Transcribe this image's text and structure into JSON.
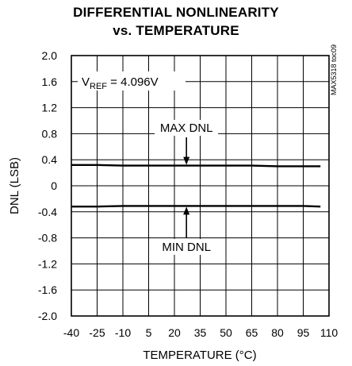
{
  "chart_data": {
    "type": "line",
    "title": "DIFFERENTIAL NONLINEARITY",
    "subtitle": "vs. TEMPERATURE",
    "xlabel": "TEMPERATURE (°C)",
    "ylabel": "DNL (LSB)",
    "xlim": [
      -40,
      110
    ],
    "ylim": [
      -2.0,
      2.0
    ],
    "x_ticks": [
      "-40",
      "-25",
      "-10",
      "5",
      "20",
      "35",
      "50",
      "65",
      "80",
      "95",
      "110"
    ],
    "x_tick_values": [
      -40,
      -25,
      -10,
      5,
      20,
      35,
      50,
      65,
      80,
      95,
      110
    ],
    "y_ticks": [
      "2.0",
      "1.6",
      "1.2",
      "0.8",
      "0.4",
      "0",
      "-0.4",
      "-0.8",
      "-1.2",
      "-1.6",
      "-2.0"
    ],
    "y_tick_values": [
      2.0,
      1.6,
      1.2,
      0.8,
      0.4,
      0,
      -0.4,
      -0.8,
      -1.2,
      -1.6,
      -2.0
    ],
    "grid": true,
    "condition_main": "V",
    "condition_sub": "REF",
    "condition_value": " = 4.096V",
    "side_code": "MAX5318 toc09",
    "series": [
      {
        "name": "MAX DNL",
        "x": [
          -40,
          -25,
          -10,
          5,
          20,
          35,
          50,
          65,
          80,
          95,
          105
        ],
        "y": [
          0.32,
          0.32,
          0.31,
          0.31,
          0.31,
          0.31,
          0.31,
          0.31,
          0.3,
          0.3,
          0.3
        ]
      },
      {
        "name": "MIN DNL",
        "x": [
          -40,
          -25,
          -10,
          5,
          20,
          35,
          50,
          65,
          80,
          95,
          105
        ],
        "y": [
          -0.32,
          -0.32,
          -0.31,
          -0.31,
          -0.31,
          -0.31,
          -0.31,
          -0.31,
          -0.31,
          -0.31,
          -0.32
        ]
      }
    ],
    "annotations": [
      {
        "text": "MAX DNL",
        "arrow_x": 27,
        "arrow_to_series": 0
      },
      {
        "text": "MIN DNL",
        "arrow_x": 27,
        "arrow_to_series": 1
      }
    ]
  }
}
